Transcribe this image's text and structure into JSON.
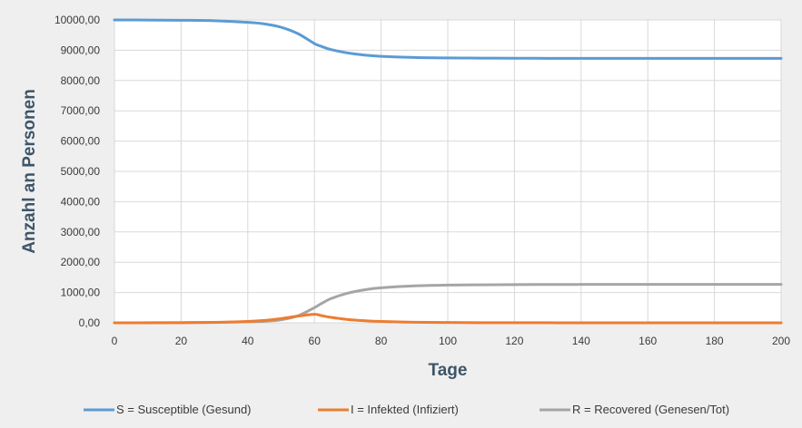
{
  "chart_data": {
    "type": "line",
    "xlabel": "Tage",
    "ylabel": "Anzahl an Personen",
    "xlim": [
      0,
      200
    ],
    "ylim": [
      0,
      10000
    ],
    "x_ticks": [
      "0",
      "20",
      "40",
      "60",
      "80",
      "100",
      "120",
      "140",
      "160",
      "180",
      "200"
    ],
    "y_ticks": [
      "0,00",
      "1000,00",
      "2000,00",
      "3000,00",
      "4000,00",
      "5000,00",
      "6000,00",
      "7000,00",
      "8000,00",
      "9000,00",
      "10000,00"
    ],
    "grid": true,
    "legend_position": "bottom",
    "x": [
      0,
      10,
      20,
      30,
      40,
      45,
      50,
      55,
      60,
      62,
      65,
      70,
      75,
      80,
      90,
      100,
      110,
      120,
      130,
      140,
      150,
      160,
      170,
      180,
      190,
      200
    ],
    "series": [
      {
        "name": "S = Susceptible (Gesund)",
        "color": "#5b9bd5",
        "values": [
          9999,
          9998,
          9990,
          9975,
          9920,
          9870,
          9760,
          9550,
          9220,
          9130,
          9020,
          8910,
          8840,
          8800,
          8760,
          8745,
          8740,
          8735,
          8733,
          8732,
          8731,
          8730,
          8730,
          8730,
          8730,
          8730
        ]
      },
      {
        "name": "I = Infekted (Infiziert)",
        "color": "#ed7d31",
        "values": [
          1,
          2,
          5,
          15,
          45,
          80,
          140,
          220,
          280,
          240,
          180,
          110,
          70,
          45,
          20,
          10,
          5,
          3,
          2,
          1,
          1,
          0,
          0,
          0,
          0,
          0
        ]
      },
      {
        "name": "R = Recovered (Genesen/Tot)",
        "color": "#a5a5a5",
        "values": [
          0,
          0,
          5,
          10,
          35,
          50,
          100,
          230,
          500,
          630,
          800,
          980,
          1090,
          1155,
          1220,
          1245,
          1255,
          1262,
          1265,
          1267,
          1268,
          1270,
          1270,
          1270,
          1270,
          1270
        ]
      }
    ]
  }
}
